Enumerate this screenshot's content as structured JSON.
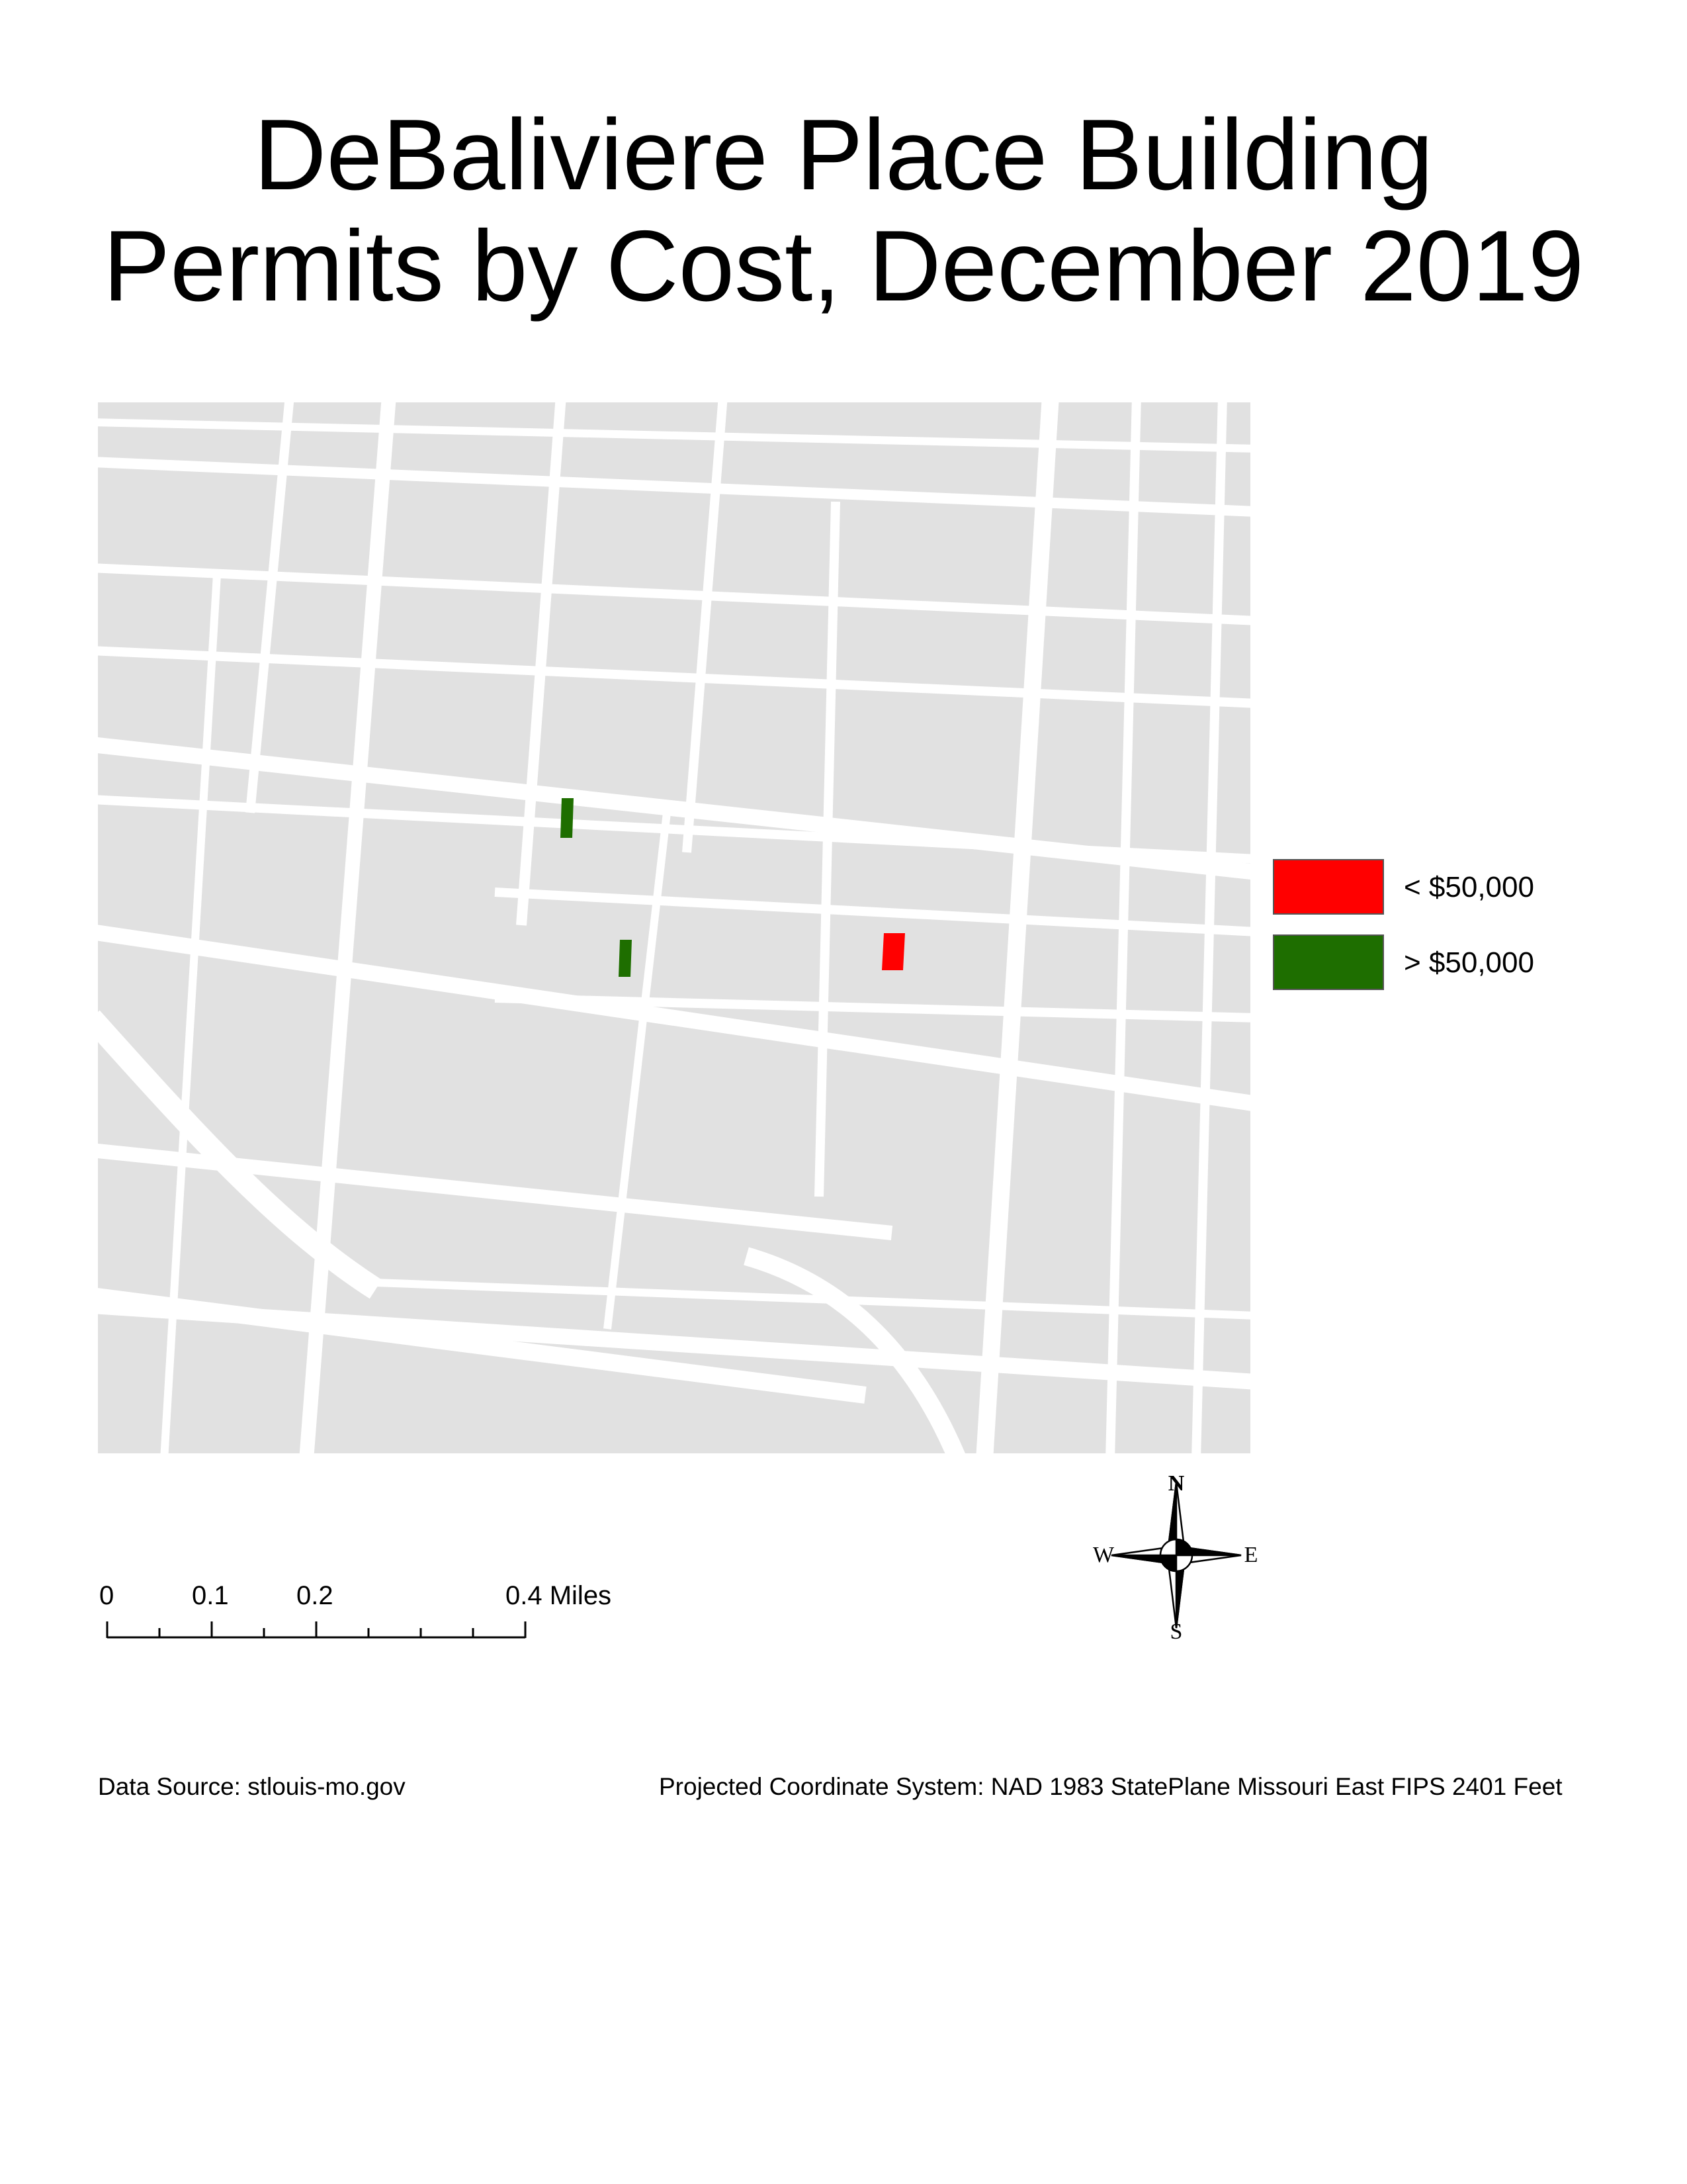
{
  "title": {
    "line1": "DeBaliviere Place Building",
    "line2": "Permits by Cost, December 2019"
  },
  "legend": {
    "items": [
      {
        "label": "< $50,000",
        "color": "#ff0000"
      },
      {
        "label": "> $50,000",
        "color": "#1e6e00"
      }
    ]
  },
  "map": {
    "block_color": "#e1e1e1",
    "street_color": "#ffffff",
    "permit_counts": {
      "under_50000": 1,
      "over_50000": 2
    }
  },
  "north_arrow": {
    "n": "N",
    "e": "E",
    "s": "S",
    "w": "W",
    "icon": "compass-rose-icon"
  },
  "scale_bar": {
    "labels": [
      "0",
      "0.1",
      "0.2",
      "0.4 Miles"
    ]
  },
  "footer": {
    "source": "Data Source: stlouis-mo.gov",
    "projection": "Projected Coordinate System: NAD 1983 StatePlane Missouri East FIPS 2401 Feet"
  }
}
